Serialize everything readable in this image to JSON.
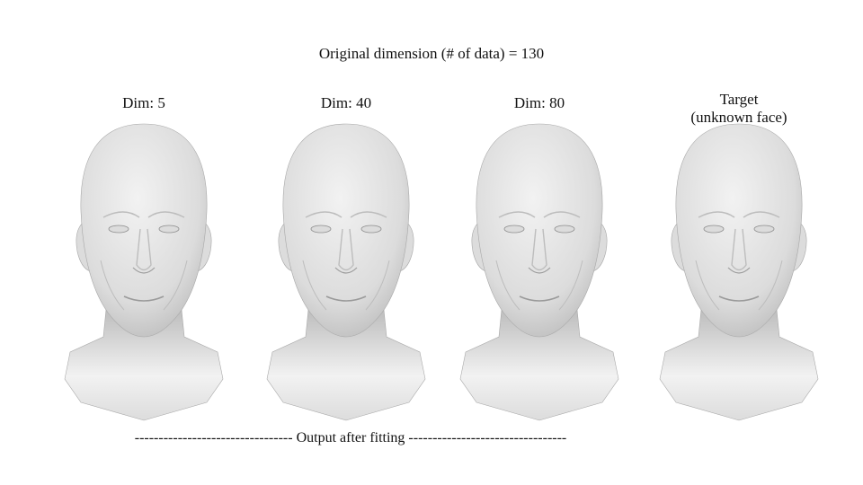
{
  "title": "Original dimension (# of data) = 130",
  "panels": [
    {
      "label_line1": "Dim: 5",
      "label_line2": ""
    },
    {
      "label_line1": "Dim: 40",
      "label_line2": ""
    },
    {
      "label_line1": "Dim: 80",
      "label_line2": ""
    },
    {
      "label_line1": "Target",
      "label_line2": "(unknown face)"
    }
  ],
  "footer": "--------------------------------- Output after fitting ---------------------------------",
  "colors": {
    "mesh_light": "#f2f2f2",
    "mesh_mid": "#dcdcdc",
    "mesh_dark": "#bdbdbd",
    "edge": "#a8a8a8"
  }
}
